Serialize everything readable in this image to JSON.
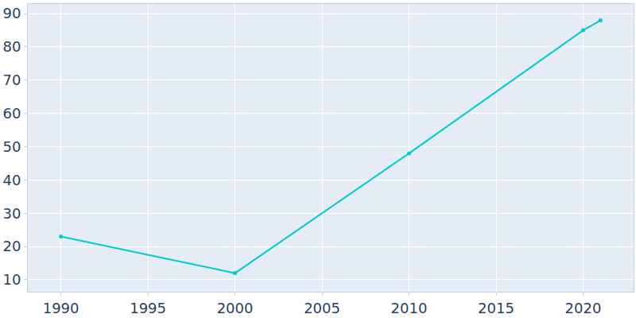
{
  "chart_data": {
    "type": "line",
    "x": [
      1990,
      2000,
      2010,
      2020,
      2021
    ],
    "values": [
      23,
      12,
      48,
      85,
      88
    ],
    "color": "#00cccc",
    "marker": "circle",
    "line_style": "solid",
    "xlim": [
      1988.1,
      2022.9
    ],
    "xticks": [
      1990,
      1995,
      2000,
      2005,
      2010,
      2015,
      2020
    ],
    "ylim": [
      6.4,
      92.9
    ],
    "yticks": [
      10,
      20,
      30,
      40,
      50,
      60,
      70,
      80,
      90
    ],
    "grid": true
  }
}
